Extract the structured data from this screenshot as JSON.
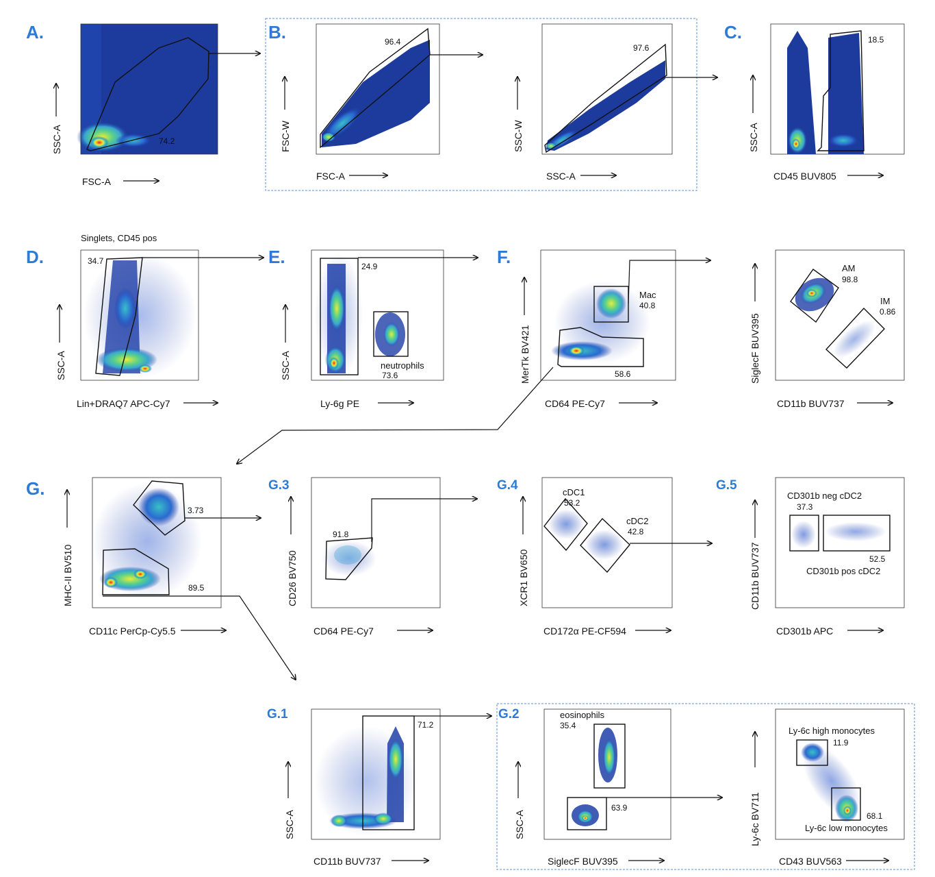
{
  "panels": {
    "A": "A.",
    "B": "B.",
    "C": "C.",
    "D": "D.",
    "E": "E.",
    "F": "F.",
    "G": "G.",
    "G1": "G.1",
    "G2": "G.2",
    "G3": "G.3",
    "G4": "G.4",
    "G5": "G.5"
  },
  "axes": {
    "a_x": "FSC-A",
    "a_y": "SSC-A",
    "b1_x": "FSC-A",
    "b1_y": "FSC-W",
    "b2_x": "SSC-A",
    "b2_y": "SSC-W",
    "c_x": "CD45 BUV805",
    "c_y": "SSC-A",
    "d_x": "Lin+DRAQ7 APC-Cy7",
    "d_y": "SSC-A",
    "e_x": "Ly-6g PE",
    "e_y": "SSC-A",
    "f_x": "CD64 PE-Cy7",
    "f_y": "MerTk BV421",
    "f2_x": "CD11b BUV737",
    "f2_y": "SiglecF BUV395",
    "g_x": "CD11c PerCp-Cy5.5",
    "g_y": "MHC-II BV510",
    "g3_x": "CD64 PE-Cy7",
    "g3_y": "CD26 BV750",
    "g4_x": "CD172α PE-CF594",
    "g4_y": "XCR1 BV650",
    "g5_x": "CD301b APC",
    "g5_y": "CD11b BUV737",
    "g1_x": "CD11b BUV737",
    "g1_y": "SSC-A",
    "g2_x": "SiglecF BUV395",
    "g2_y": "SSC-A",
    "g2b_x": "CD43 BUV563",
    "g2b_y": "Ly-6c BV711"
  },
  "gates": {
    "a": "74.2",
    "b1": "96.4",
    "b2": "97.6",
    "c": "18.5",
    "d": "34.7",
    "e_lo": "24.9",
    "e_neu": "73.6",
    "f_mac": "40.8",
    "f_lo": "58.6",
    "am": "98.8",
    "im": "0.86",
    "g_hi": "3.73",
    "g_lo": "89.5",
    "g3": "91.8",
    "cdc1": "53.2",
    "cdc2": "42.8",
    "g5_neg": "37.3",
    "g5_pos": "52.5",
    "g1": "71.2",
    "eos": "35.4",
    "g2_lo": "63.9",
    "ly6c_hi": "11.9",
    "ly6c_lo": "68.1"
  },
  "populations": {
    "singlets": "Singlets, CD45 pos",
    "neutrophils": "neutrophils",
    "mac": "Mac",
    "am": "AM",
    "im": "IM",
    "cdc1": "cDC1",
    "cdc2": "cDC2",
    "cd301b_neg": "CD301b neg cDC2",
    "cd301b_pos": "CD301b pos cDC2",
    "eosinophils": "eosinophils",
    "ly6c_high": "Ly-6c high monocytes",
    "ly6c_low": "Ly-6c low monocytes"
  },
  "colors": {
    "panel_label": "#2d7bd6",
    "dashed_box": "#5b8fd6",
    "density_low": "#1f3fa8",
    "density_mid": "#39c0c8",
    "density_high": "#e8ec3a",
    "density_peak": "#e0231c"
  }
}
